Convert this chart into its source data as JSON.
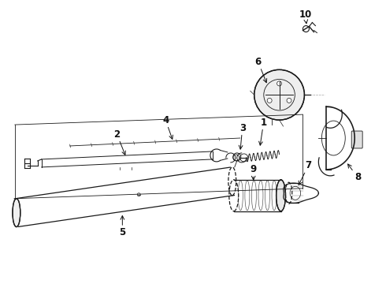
{
  "background_color": "#ffffff",
  "line_color": "#1a1a1a",
  "label_color": "#111111",
  "fig_width": 4.9,
  "fig_height": 3.6,
  "dpi": 100,
  "label_fontsize": 8.5,
  "arrow_lw": 0.7,
  "part_lw": 0.9
}
